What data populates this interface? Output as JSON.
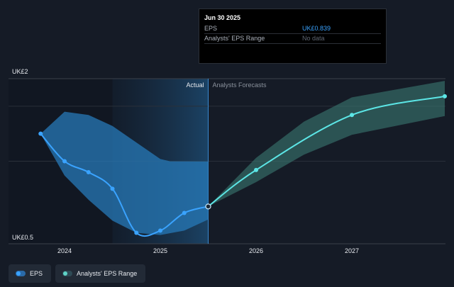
{
  "tooltip": {
    "date": "Jun 30 2025",
    "rows": [
      {
        "label": "EPS",
        "value": "UK£0.839",
        "color": "#3aa3ff"
      },
      {
        "label": "Analysts' EPS Range",
        "value": "No data",
        "color": "#5f6672"
      }
    ]
  },
  "legend": [
    {
      "label": "EPS",
      "color": "#3aa3ff"
    },
    {
      "label": "Analysts' EPS Range",
      "color": "#5fd3c7"
    }
  ],
  "chart_data": {
    "type": "line",
    "y_top_label": "UK£2",
    "y_bottom_label": "UK£0.5",
    "ylim": [
      0.5,
      2.0
    ],
    "xlim": [
      2023.6,
      2027.97
    ],
    "x_ticks": [
      {
        "label": "2024",
        "x": 2024.0
      },
      {
        "label": "2025",
        "x": 2025.0
      },
      {
        "label": "2026",
        "x": 2026.0
      },
      {
        "label": "2027",
        "x": 2027.0
      }
    ],
    "gridlines_y": [
      1.75,
      1.25
    ],
    "divider_x": 2025.5,
    "history_shade_start_x": 2024.5,
    "region_labels": {
      "actual": "Actual",
      "forecast": "Analysts Forecasts"
    },
    "colors": {
      "actual": "#3aa3ff",
      "forecast": "#5ce6e6",
      "actual_band": "#2779b8",
      "forecast_band": "#3a7a72"
    },
    "actual_eps": [
      {
        "x": 2023.75,
        "y": 1.5
      },
      {
        "x": 2024.0,
        "y": 1.25
      },
      {
        "x": 2024.25,
        "y": 1.15
      },
      {
        "x": 2024.5,
        "y": 1.0
      },
      {
        "x": 2024.75,
        "y": 0.6
      },
      {
        "x": 2025.0,
        "y": 0.62
      },
      {
        "x": 2025.25,
        "y": 0.78
      },
      {
        "x": 2025.5,
        "y": 0.839
      }
    ],
    "actual_band_upper": [
      {
        "x": 2023.75,
        "y": 1.5
      },
      {
        "x": 2024.0,
        "y": 1.7
      },
      {
        "x": 2024.25,
        "y": 1.67
      },
      {
        "x": 2024.5,
        "y": 1.57
      },
      {
        "x": 2024.75,
        "y": 1.42
      },
      {
        "x": 2025.0,
        "y": 1.27
      },
      {
        "x": 2025.1,
        "y": 1.25
      },
      {
        "x": 2025.5,
        "y": 1.25
      }
    ],
    "actual_band_lower": [
      {
        "x": 2023.75,
        "y": 1.5
      },
      {
        "x": 2024.0,
        "y": 1.12
      },
      {
        "x": 2024.25,
        "y": 0.9
      },
      {
        "x": 2024.5,
        "y": 0.71
      },
      {
        "x": 2024.75,
        "y": 0.6
      },
      {
        "x": 2025.0,
        "y": 0.58
      },
      {
        "x": 2025.25,
        "y": 0.62
      },
      {
        "x": 2025.5,
        "y": 0.72
      }
    ],
    "forecast_eps": [
      {
        "x": 2025.5,
        "y": 0.839
      },
      {
        "x": 2026.0,
        "y": 1.17
      },
      {
        "x": 2027.0,
        "y": 1.67
      },
      {
        "x": 2027.97,
        "y": 1.84
      }
    ],
    "forecast_band_upper": [
      {
        "x": 2025.5,
        "y": 0.839
      },
      {
        "x": 2026.0,
        "y": 1.28
      },
      {
        "x": 2026.5,
        "y": 1.61
      },
      {
        "x": 2027.0,
        "y": 1.83
      },
      {
        "x": 2027.97,
        "y": 1.98
      }
    ],
    "forecast_band_lower": [
      {
        "x": 2025.5,
        "y": 0.839
      },
      {
        "x": 2026.0,
        "y": 1.06
      },
      {
        "x": 2026.5,
        "y": 1.31
      },
      {
        "x": 2027.0,
        "y": 1.49
      },
      {
        "x": 2027.97,
        "y": 1.66
      }
    ]
  }
}
